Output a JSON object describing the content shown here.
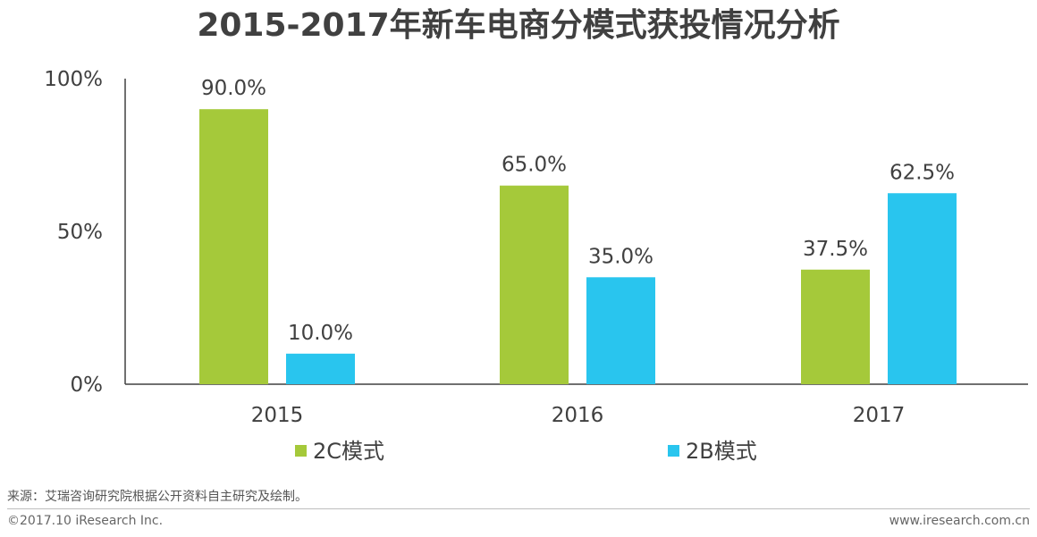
{
  "chart_data": {
    "type": "bar",
    "title": "2015-2017年新车电商分模式获投情况分析",
    "categories": [
      "2015",
      "2016",
      "2017"
    ],
    "series": [
      {
        "name": "2C模式",
        "values": [
          90.0,
          65.0,
          37.5
        ],
        "labels": [
          "90.0%",
          "65.0%",
          "37.5%"
        ],
        "color": "#a5c93a"
      },
      {
        "name": "2B模式",
        "values": [
          10.0,
          35.0,
          62.5
        ],
        "labels": [
          "10.0%",
          "35.0%",
          "62.5%"
        ],
        "color": "#29c5ee"
      }
    ],
    "yticks": [
      "0%",
      "50%",
      "100%"
    ],
    "ytick_values": [
      0,
      50,
      100
    ],
    "ylim": [
      0,
      100
    ],
    "xlabel": "",
    "ylabel": "",
    "legend_position": "bottom",
    "grid": false
  },
  "footer": {
    "source": "来源：艾瑞咨询研究院根据公开资料自主研究及绘制。",
    "copyright": "©2017.10 iResearch Inc.",
    "website": "www.iresearch.com.cn"
  },
  "colors": {
    "text": "#404040",
    "axis": "#404040"
  }
}
